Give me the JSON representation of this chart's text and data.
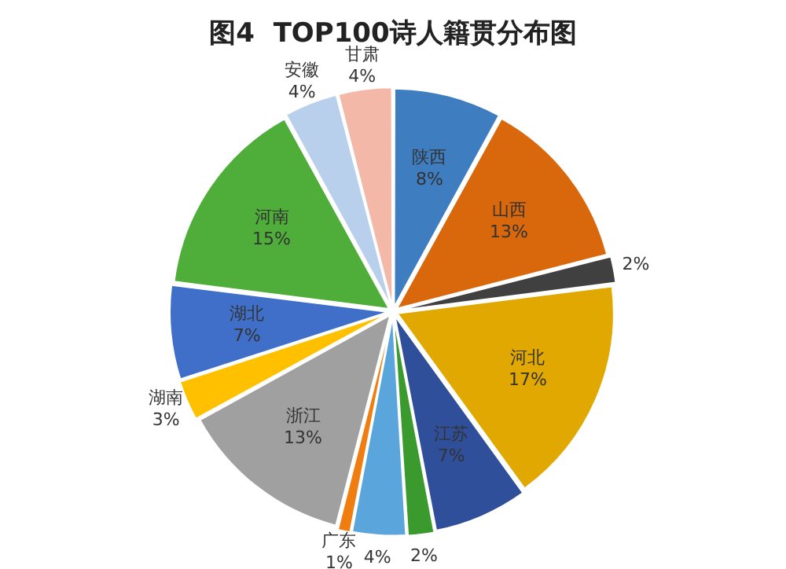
{
  "chart_data": {
    "type": "pie",
    "title": "图4  TOP100诗人籍贯分布图",
    "categories": [
      "陕西",
      "山西",
      null,
      "河北",
      "江苏",
      null,
      null,
      "广东",
      "浙江",
      "湖南",
      "湖北",
      "河南",
      "安徽",
      "甘肃"
    ],
    "values": [
      8,
      13,
      2,
      17,
      7,
      2,
      4,
      1,
      13,
      3,
      7,
      15,
      4,
      4
    ],
    "value_labels": [
      "8%",
      "13%",
      "2%",
      "17%",
      "7%",
      "2%",
      "4%",
      "1%",
      "13%",
      "3%",
      "7%",
      "15%",
      "4%",
      "4%"
    ],
    "colors": [
      "#3d7dc0",
      "#d9670c",
      "#404040",
      "#e0a800",
      "#2f4f9a",
      "#3a9a2e",
      "#5aa5dc",
      "#f07d10",
      "#a0a0a0",
      "#ffc000",
      "#3f6fc8",
      "#4fae3a",
      "#b8d0ec",
      "#f4b8a8"
    ],
    "legend": false
  }
}
